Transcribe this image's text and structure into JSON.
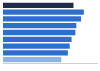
{
  "chart_data": {
    "type": "bar",
    "orientation": "horizontal",
    "categories": [
      null,
      null,
      null,
      null,
      null,
      null,
      null,
      null,
      null
    ],
    "values": [
      75,
      86,
      83,
      78,
      77,
      73,
      71,
      69,
      62
    ],
    "colors": [
      "#1e2d4a",
      "#2f6fcb",
      "#2f6fcb",
      "#2f6fcb",
      "#2f6fcb",
      "#2f6fcb",
      "#2f6fcb",
      "#2f6fcb",
      "#8fb3e3"
    ],
    "xlim": [
      0,
      100
    ],
    "grid": false,
    "tick_labels": false
  }
}
